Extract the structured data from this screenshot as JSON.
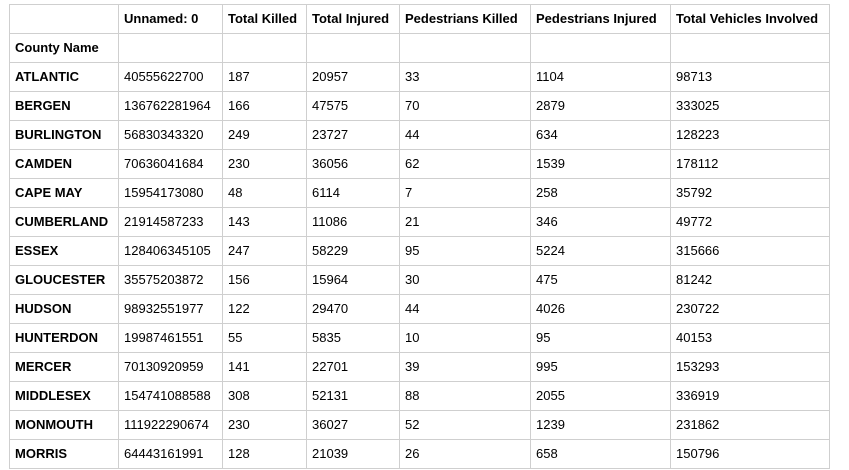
{
  "table": {
    "columns": [
      "",
      "Unnamed: 0",
      "Total Killed",
      "Total Injured",
      "Pedestrians Killed",
      "Pedestrians Injured",
      "Total Vehicles Involved"
    ],
    "index_name": "County Name",
    "rows": [
      [
        "ATLANTIC",
        "40555622700",
        "187",
        "20957",
        "33",
        "1104",
        "98713"
      ],
      [
        "BERGEN",
        "136762281964",
        "166",
        "47575",
        "70",
        "2879",
        "333025"
      ],
      [
        "BURLINGTON",
        "56830343320",
        "249",
        "23727",
        "44",
        "634",
        "128223"
      ],
      [
        "CAMDEN",
        "70636041684",
        "230",
        "36056",
        "62",
        "1539",
        "178112"
      ],
      [
        "CAPE MAY",
        "15954173080",
        "48",
        "6114",
        "7",
        "258",
        "35792"
      ],
      [
        "CUMBERLAND",
        "21914587233",
        "143",
        "11086",
        "21",
        "346",
        "49772"
      ],
      [
        "ESSEX",
        "128406345105",
        "247",
        "58229",
        "95",
        "5224",
        "315666"
      ],
      [
        "GLOUCESTER",
        "35575203872",
        "156",
        "15964",
        "30",
        "475",
        "81242"
      ],
      [
        "HUDSON",
        "98932551977",
        "122",
        "29470",
        "44",
        "4026",
        "230722"
      ],
      [
        "HUNTERDON",
        "19987461551",
        "55",
        "5835",
        "10",
        "95",
        "40153"
      ],
      [
        "MERCER",
        "70130920959",
        "141",
        "22701",
        "39",
        "995",
        "153293"
      ],
      [
        "MIDDLESEX",
        "154741088588",
        "308",
        "52131",
        "88",
        "2055",
        "336919"
      ],
      [
        "MONMOUTH",
        "111922290674",
        "230",
        "36027",
        "52",
        "1239",
        "231862"
      ],
      [
        "MORRIS",
        "64443161991",
        "128",
        "21039",
        "26",
        "658",
        "150796"
      ]
    ]
  }
}
